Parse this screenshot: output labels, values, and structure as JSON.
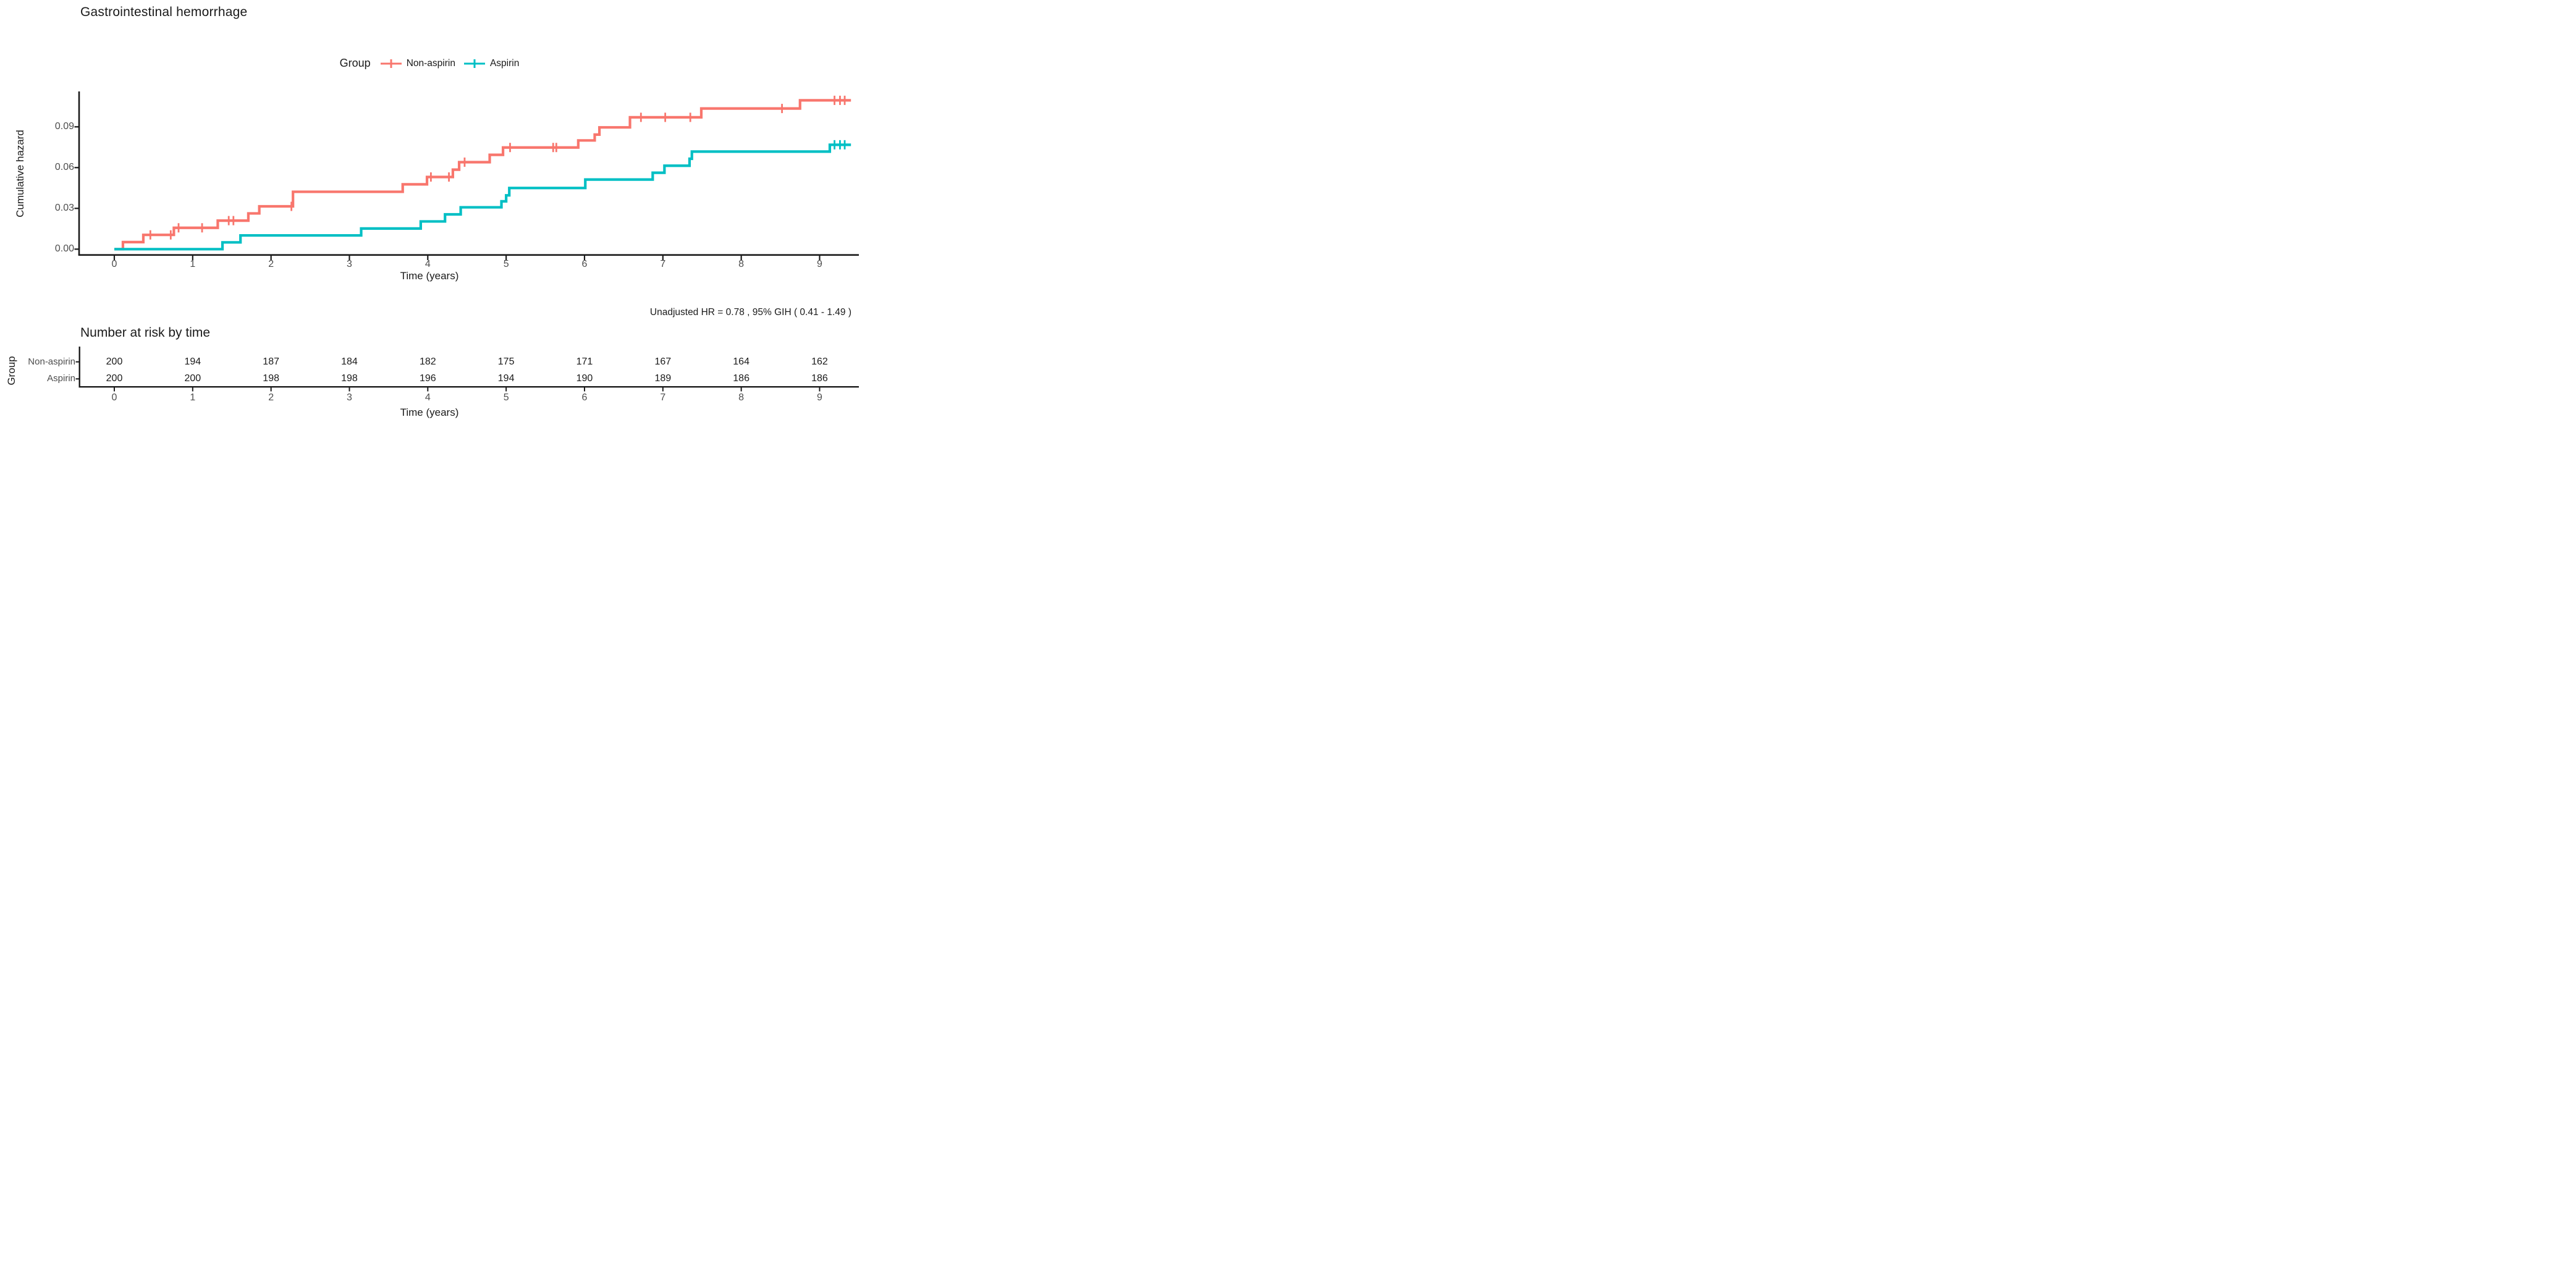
{
  "title": "Gastrointestinal hemorrhage",
  "legend": {
    "label": "Group",
    "items": [
      {
        "name": "Non-aspirin",
        "color": "#F8766D"
      },
      {
        "name": "Aspirin",
        "color": "#00BFC4"
      }
    ]
  },
  "annotation": "Unadjusted HR = 0.78 , 95% GIH ( 0.41 - 1.49 )",
  "main_plot": {
    "ylabel": "Cumulative hazard",
    "xlabel": "Time (years)"
  },
  "risk_table": {
    "title": "Number at risk by time",
    "group_label": "Group",
    "xlabel": "Time (years)",
    "times": [
      0,
      1,
      2,
      3,
      4,
      5,
      6,
      7,
      8,
      9
    ],
    "rows": [
      {
        "label": "Non-aspirin",
        "values": [
          200,
          194,
          187,
          184,
          182,
          175,
          171,
          167,
          164,
          162
        ]
      },
      {
        "label": "Aspirin",
        "values": [
          200,
          200,
          198,
          198,
          196,
          194,
          190,
          189,
          186,
          186
        ]
      }
    ]
  },
  "chart_data": {
    "type": "line",
    "subtype": "step-function-cumulative-hazard",
    "title": "Gastrointestinal hemorrhage",
    "xlabel": "Time (years)",
    "ylabel": "Cumulative hazard",
    "xlim": [
      -0.45,
      9.5
    ],
    "ylim": [
      0,
      0.115
    ],
    "xticks": [
      0,
      1,
      2,
      3,
      4,
      5,
      6,
      7,
      8,
      9
    ],
    "yticks": [
      "0.00",
      "0.03",
      "0.06",
      "0.09"
    ],
    "ytick_values": [
      0.0,
      0.03,
      0.06,
      0.09
    ],
    "grid": false,
    "legend_position": "top",
    "axis_color": "#1a1a1a",
    "tick_label_color": "#4d4d4d",
    "hr_annotation": "Unadjusted HR = 0.78 , 95% GIH ( 0.41 - 1.49 )",
    "series": [
      {
        "name": "Non-aspirin",
        "color": "#F8766D",
        "start": [
          0,
          0
        ],
        "end_time": 9.4,
        "steps": [
          [
            0.11,
            0.0052
          ],
          [
            0.37,
            0.0105
          ],
          [
            0.76,
            0.0157
          ],
          [
            1.32,
            0.021
          ],
          [
            1.71,
            0.0263
          ],
          [
            1.85,
            0.0315
          ],
          [
            2.28,
            0.0422
          ],
          [
            3.68,
            0.0477
          ],
          [
            3.99,
            0.0531
          ],
          [
            4.32,
            0.0585
          ],
          [
            4.4,
            0.064
          ],
          [
            4.79,
            0.0694
          ],
          [
            4.96,
            0.0748
          ],
          [
            5.92,
            0.08
          ],
          [
            6.13,
            0.0843
          ],
          [
            6.19,
            0.0896
          ],
          [
            6.58,
            0.097
          ],
          [
            7.49,
            0.1035
          ],
          [
            8.75,
            0.1095
          ]
        ],
        "censor_marks": [
          [
            0.46,
            0.0105
          ],
          [
            0.72,
            0.0105
          ],
          [
            0.82,
            0.0157
          ],
          [
            1.12,
            0.0157
          ],
          [
            1.46,
            0.021
          ],
          [
            1.52,
            0.021
          ],
          [
            2.26,
            0.0315
          ],
          [
            4.04,
            0.0531
          ],
          [
            4.27,
            0.0531
          ],
          [
            4.47,
            0.064
          ],
          [
            5.05,
            0.0748
          ],
          [
            5.6,
            0.0748
          ],
          [
            5.64,
            0.0748
          ],
          [
            6.72,
            0.097
          ],
          [
            7.03,
            0.097
          ],
          [
            7.35,
            0.097
          ],
          [
            8.52,
            0.1035
          ],
          [
            9.19,
            0.1095
          ],
          [
            9.26,
            0.1095
          ],
          [
            9.32,
            0.1095
          ]
        ]
      },
      {
        "name": "Aspirin",
        "color": "#00BFC4",
        "start": [
          0,
          0
        ],
        "end_time": 9.4,
        "steps": [
          [
            1.38,
            0.005
          ],
          [
            1.61,
            0.0101
          ],
          [
            3.15,
            0.0152
          ],
          [
            3.91,
            0.0204
          ],
          [
            4.22,
            0.0256
          ],
          [
            4.42,
            0.0308
          ],
          [
            4.94,
            0.0352
          ],
          [
            5.0,
            0.0396
          ],
          [
            5.04,
            0.045
          ],
          [
            6.01,
            0.0512
          ],
          [
            6.87,
            0.0562
          ],
          [
            7.02,
            0.0614
          ],
          [
            7.34,
            0.0665
          ],
          [
            7.37,
            0.0718
          ],
          [
            9.13,
            0.0768
          ]
        ],
        "censor_marks": [
          [
            9.19,
            0.0768
          ],
          [
            9.26,
            0.0768
          ],
          [
            9.32,
            0.0768
          ]
        ]
      }
    ],
    "risk_table": {
      "title": "Number at risk by time",
      "group_label": "Group",
      "times": [
        0,
        1,
        2,
        3,
        4,
        5,
        6,
        7,
        8,
        9
      ],
      "rows": [
        {
          "label": "Non-aspirin",
          "values": [
            200,
            194,
            187,
            184,
            182,
            175,
            171,
            167,
            164,
            162
          ]
        },
        {
          "label": "Aspirin",
          "values": [
            200,
            200,
            198,
            198,
            196,
            194,
            190,
            189,
            186,
            186
          ]
        }
      ]
    }
  }
}
